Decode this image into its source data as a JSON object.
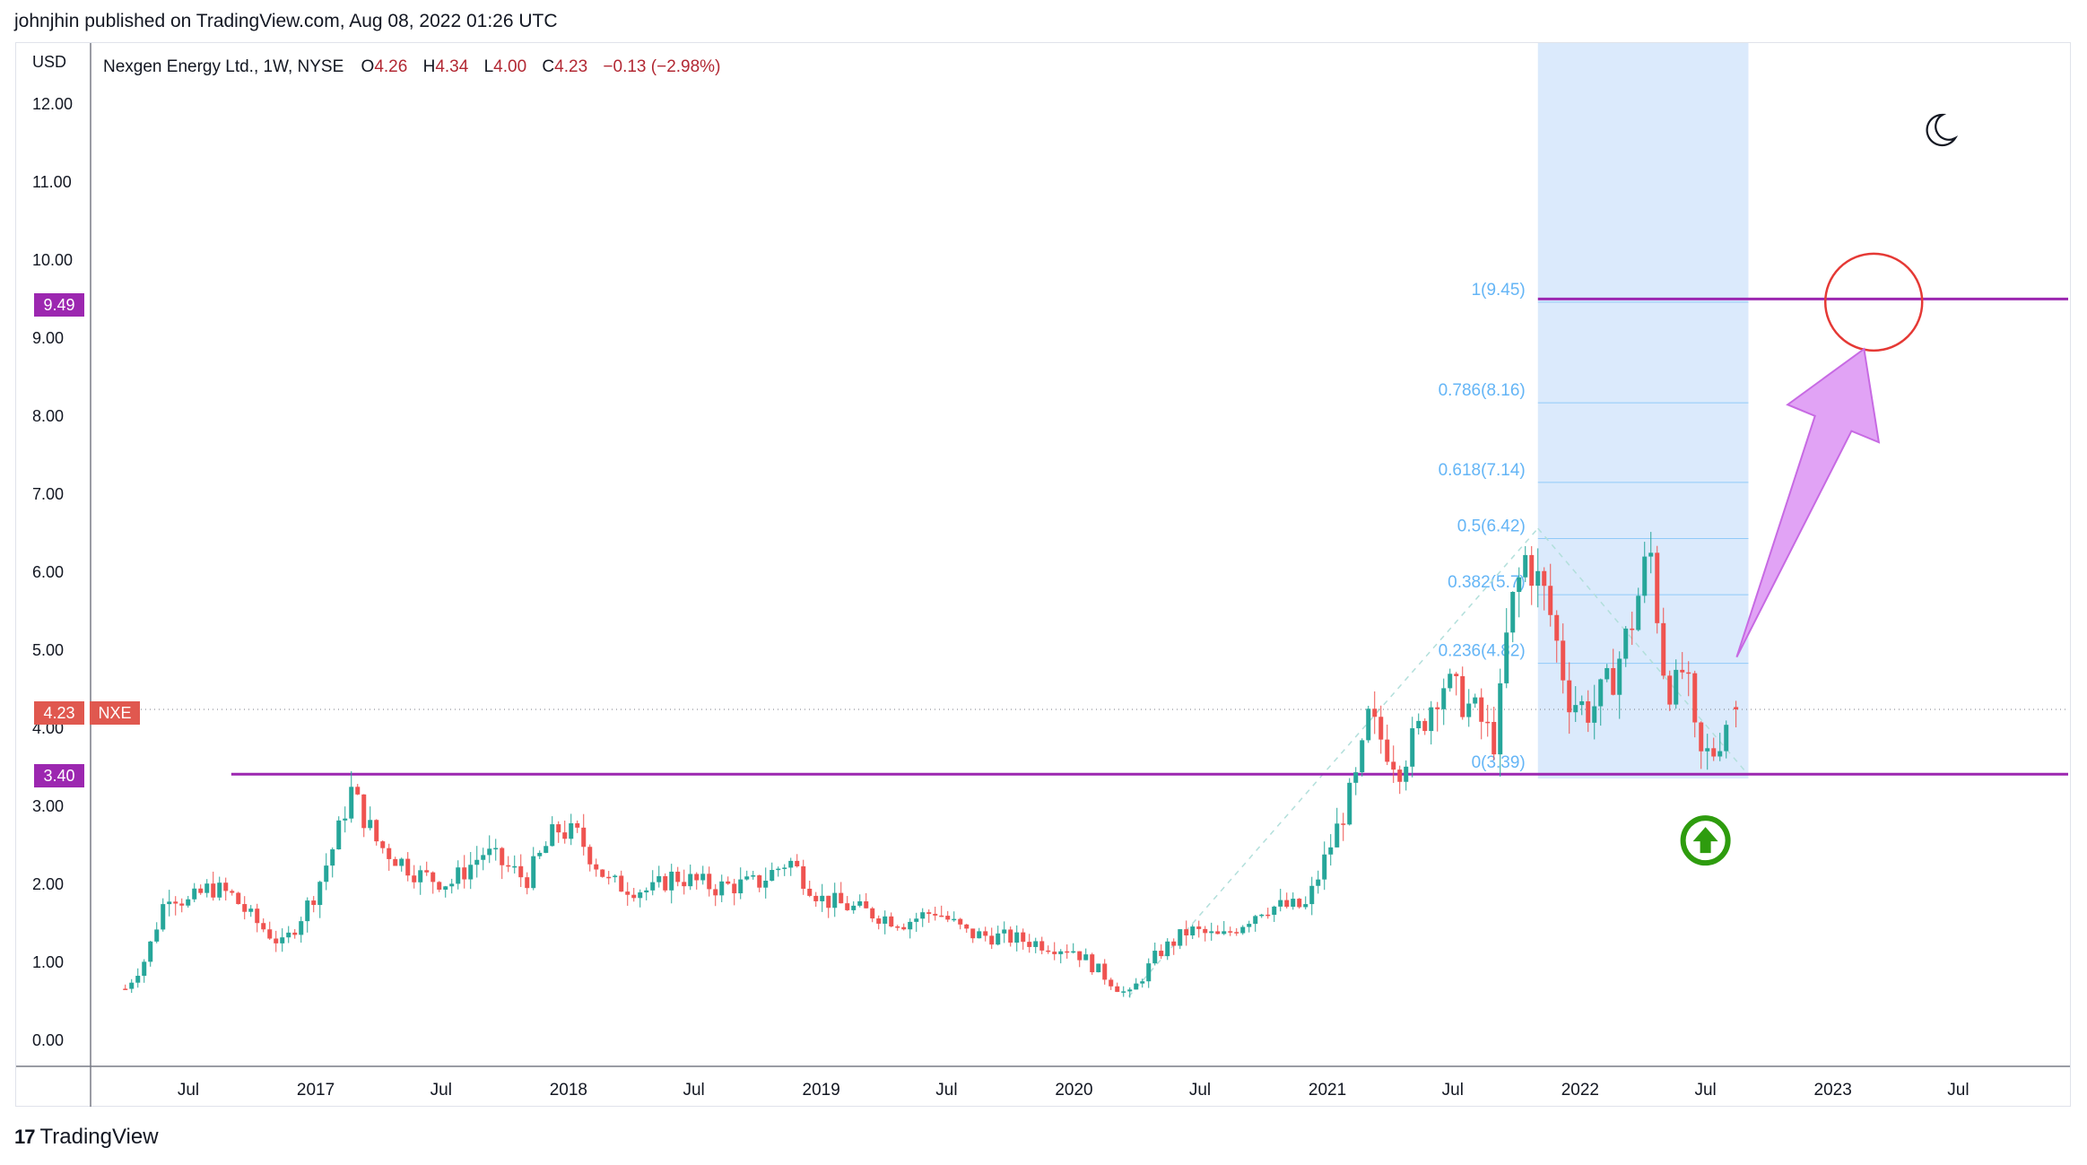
{
  "header": {
    "published_by": "johnjhin published on TradingView.com, Aug 08, 2022 01:26 UTC"
  },
  "legend": {
    "symbol": "Nexgen Energy Ltd., 1W, NYSE",
    "open_label": "O",
    "open": "4.26",
    "high_label": "H",
    "high": "4.34",
    "low_label": "L",
    "low": "4.00",
    "close_label": "C",
    "close": "4.23",
    "change": "−0.13 (−2.98%)"
  },
  "axis": {
    "currency": "USD",
    "y_ticks": [
      "0.00",
      "1.00",
      "2.00",
      "3.00",
      "4.00",
      "5.00",
      "6.00",
      "7.00",
      "8.00",
      "9.00",
      "10.00",
      "11.00",
      "12.00"
    ],
    "x_ticks": [
      "Jul",
      "2017",
      "Jul",
      "2018",
      "Jul",
      "2019",
      "Jul",
      "2020",
      "Jul",
      "2021",
      "Jul",
      "2022",
      "Jul",
      "2023",
      "Jul"
    ]
  },
  "price_badges": {
    "target": "9.49",
    "current": "4.23",
    "ticker": "NXE",
    "support": "3.40"
  },
  "footer": {
    "brand": "TradingView",
    "brand_mark": "17"
  },
  "colors": {
    "up": "#26a69a",
    "down": "#ef5350",
    "purple": "#9c27b0",
    "fib": "#90caf9",
    "fib_zone": "#dbeafc",
    "red_circle": "#e53935",
    "green_arrow": "#2e9c0e",
    "arrow_fill": "#e1a3f5"
  },
  "chart_data": {
    "type": "candlestick",
    "title": "Nexgen Energy Ltd., 1W, NYSE",
    "ylabel": "USD",
    "ylim": [
      -0.35,
      12.6
    ],
    "x_tick_dates": [
      "2016-07",
      "2017-01",
      "2017-07",
      "2018-01",
      "2018-07",
      "2019-01",
      "2019-07",
      "2020-01",
      "2020-07",
      "2021-01",
      "2021-07",
      "2022-01",
      "2022-07",
      "2023-01",
      "2023-07"
    ],
    "close_path": [
      [
        "2016-04-01",
        0.65
      ],
      [
        "2016-05-01",
        1.05
      ],
      [
        "2016-06-01",
        1.9
      ],
      [
        "2016-07-01",
        1.75
      ],
      [
        "2016-08-01",
        1.95
      ],
      [
        "2016-09-01",
        1.85
      ],
      [
        "2016-10-01",
        1.55
      ],
      [
        "2016-11-15",
        1.2
      ],
      [
        "2017-01-01",
        1.9
      ],
      [
        "2017-02-01",
        2.6
      ],
      [
        "2017-02-20",
        3.2
      ],
      [
        "2017-04-01",
        2.5
      ],
      [
        "2017-06-01",
        2.1
      ],
      [
        "2017-07-15",
        2.0
      ],
      [
        "2017-09-01",
        2.4
      ],
      [
        "2017-11-01",
        2.05
      ],
      [
        "2017-12-15",
        2.7
      ],
      [
        "2018-01-15",
        2.6
      ],
      [
        "2018-03-01",
        2.0
      ],
      [
        "2018-05-01",
        1.9
      ],
      [
        "2018-06-01",
        2.1
      ],
      [
        "2018-08-01",
        1.95
      ],
      [
        "2018-10-01",
        2.0
      ],
      [
        "2018-11-15",
        2.3
      ],
      [
        "2019-01-01",
        1.8
      ],
      [
        "2019-03-01",
        1.65
      ],
      [
        "2019-05-01",
        1.5
      ],
      [
        "2019-06-15",
        1.65
      ],
      [
        "2019-08-01",
        1.35
      ],
      [
        "2019-10-01",
        1.3
      ],
      [
        "2020-01-01",
        1.15
      ],
      [
        "2020-03-20",
        0.55
      ],
      [
        "2020-05-01",
        1.1
      ],
      [
        "2020-06-15",
        1.4
      ],
      [
        "2020-08-01",
        1.3
      ],
      [
        "2020-10-01",
        1.7
      ],
      [
        "2020-12-01",
        1.7
      ],
      [
        "2021-01-15",
        2.7
      ],
      [
        "2021-02-15",
        3.4
      ],
      [
        "2021-03-01",
        4.1
      ],
      [
        "2021-04-15",
        3.5
      ],
      [
        "2021-05-15",
        4.0
      ],
      [
        "2021-06-15",
        4.6
      ],
      [
        "2021-08-01",
        4.2
      ],
      [
        "2021-09-01",
        3.8
      ],
      [
        "2021-09-20",
        5.4
      ],
      [
        "2021-10-15",
        6.2
      ],
      [
        "2021-11-15",
        5.6
      ],
      [
        "2021-12-15",
        4.4
      ],
      [
        "2022-01-15",
        4.2
      ],
      [
        "2022-02-15",
        4.6
      ],
      [
        "2022-03-15",
        5.3
      ],
      [
        "2022-04-12",
        6.3
      ],
      [
        "2022-05-01",
        4.8
      ],
      [
        "2022-05-15",
        4.4
      ],
      [
        "2022-06-01",
        4.8
      ],
      [
        "2022-06-20",
        3.6
      ],
      [
        "2022-07-15",
        3.7
      ],
      [
        "2022-08-05",
        4.23
      ]
    ],
    "last_bar": {
      "date": "2022-08-05",
      "open": 4.26,
      "high": 4.34,
      "low": 4.0,
      "close": 4.23
    },
    "horizontal_lines": [
      {
        "price": 9.49,
        "from": "2021-11-01",
        "to": "2023-12-31"
      },
      {
        "price": 3.4,
        "from": "2016-09-01",
        "to": "2023-12-31"
      }
    ],
    "current_price_line": 4.23,
    "fibonacci": {
      "zone": [
        "2021-11-01",
        "2022-09-01"
      ],
      "levels": [
        {
          "ratio": "0",
          "price": 3.39,
          "label": "0(3.39)"
        },
        {
          "ratio": "0.236",
          "price": 4.82,
          "label": "0.236(4.82)"
        },
        {
          "ratio": "0.382",
          "price": 5.7,
          "label": "0.382(5.7)"
        },
        {
          "ratio": "0.5",
          "price": 6.42,
          "label": "0.5(6.42)"
        },
        {
          "ratio": "0.618",
          "price": 7.14,
          "label": "0.618(7.14)"
        },
        {
          "ratio": "0.786",
          "price": 8.16,
          "label": "0.786(8.16)"
        },
        {
          "ratio": "1",
          "price": 9.45,
          "label": "1(9.45)"
        }
      ]
    },
    "annotations": [
      {
        "type": "target-circle",
        "date": "2023-03-01",
        "price": 9.45
      },
      {
        "type": "arrow-up",
        "date": "2022-08-15",
        "price": 4.9,
        "to_date": "2023-02-15",
        "to_price": 8.85
      },
      {
        "type": "green-up-arrow",
        "date": "2022-07-01",
        "price": 2.55
      }
    ]
  }
}
